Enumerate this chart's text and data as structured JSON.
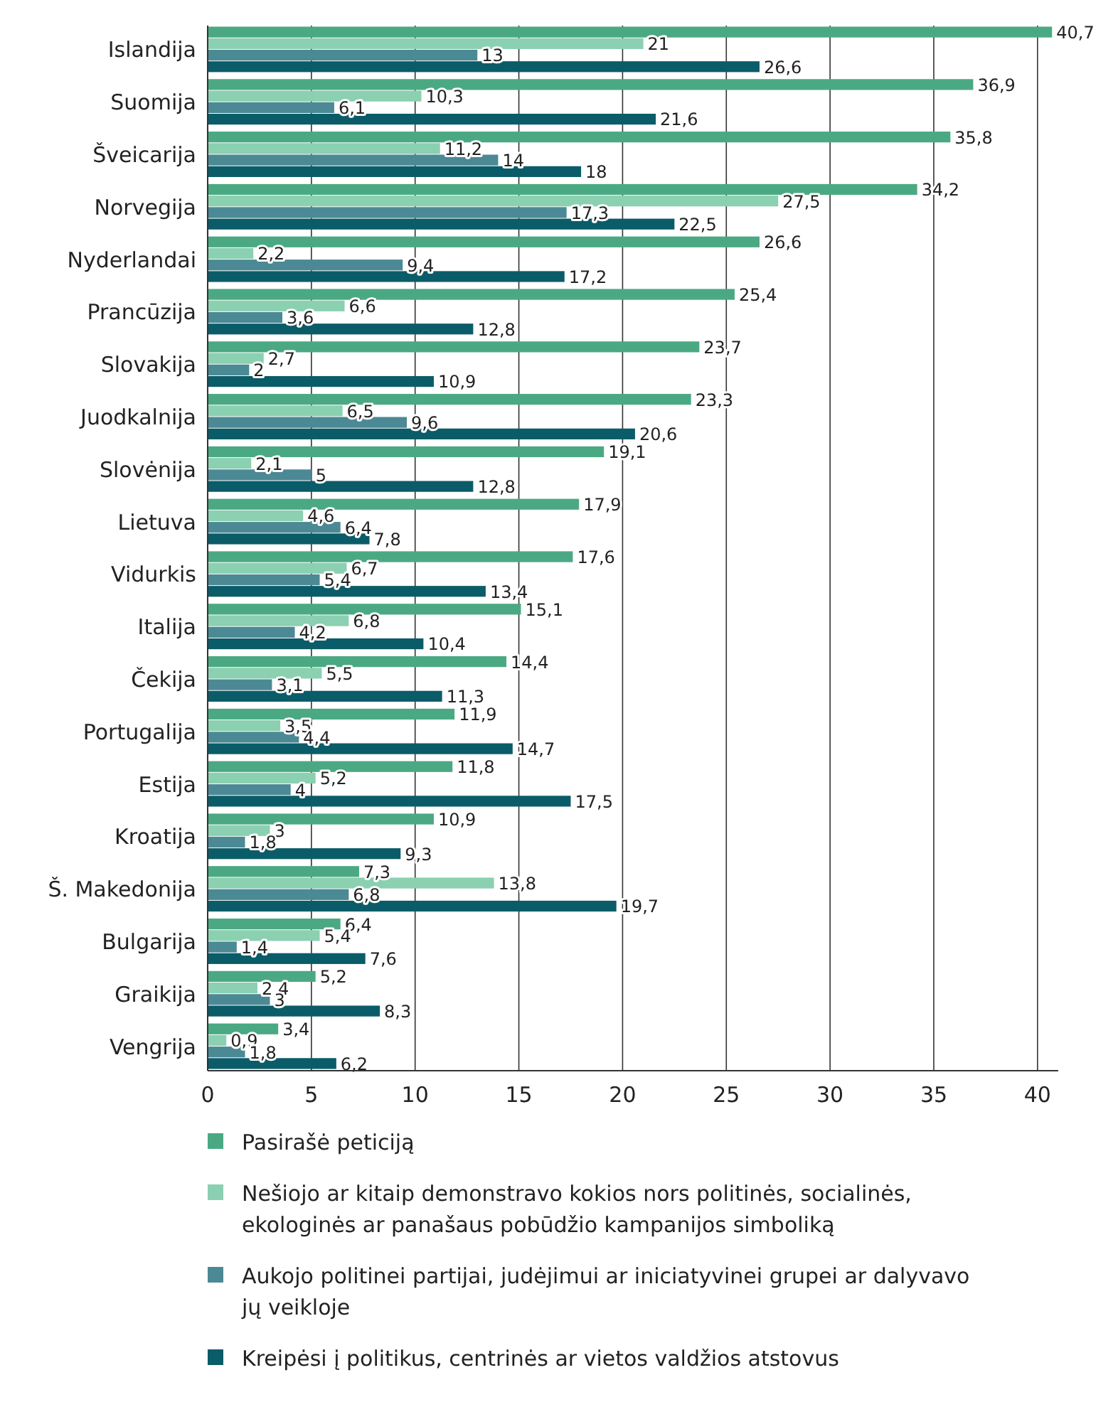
{
  "chart_data": {
    "type": "bar",
    "orientation": "horizontal",
    "categories": [
      "Islandija",
      "Suomija",
      "Šveicarija",
      "Norvegija",
      "Nyderlandai",
      "Prancūzija",
      "Slovakija",
      "Juodkalnija",
      "Slovėnija",
      "Lietuva",
      "Vidurkis",
      "Italija",
      "Čekija",
      "Portugalija",
      "Estija",
      "Kroatija",
      "Š. Makedonija",
      "Bulgarija",
      "Graikija",
      "Vengrija"
    ],
    "series": [
      {
        "name": "Pasirašė peticiją",
        "color": "#4aa983",
        "values": [
          40.7,
          36.9,
          35.8,
          34.2,
          26.6,
          25.4,
          23.7,
          23.3,
          19.1,
          17.9,
          17.6,
          15.1,
          14.4,
          11.9,
          11.8,
          10.9,
          7.3,
          6.4,
          5.2,
          3.4
        ],
        "value_labels": [
          "40,7",
          "36,9",
          "35,8",
          "34,2",
          "26,6",
          "25,4",
          "23,7",
          "23,3",
          "19,1",
          "17,9",
          "17,6",
          "15,1",
          "14,4",
          "11,9",
          "11,8",
          "10,9",
          "7,3",
          "6,4",
          "5,2",
          "3,4"
        ]
      },
      {
        "name": "Nešiojo ar kitaip demonstravo kokios nors politinės, socialinės, ekologinės ar panašaus pobūdžio kampanijos simboliką",
        "color": "#8ad0b1",
        "values": [
          21,
          10.3,
          11.2,
          27.5,
          2.2,
          6.6,
          2.7,
          6.5,
          2.1,
          4.6,
          6.7,
          6.8,
          5.5,
          3.5,
          5.2,
          3,
          13.8,
          5.4,
          2.4,
          0.9
        ],
        "value_labels": [
          "21",
          "10,3",
          "11,2",
          "27,5",
          "2,2",
          "6,6",
          "2,7",
          "6,5",
          "2,1",
          "4,6",
          "6,7",
          "6,8",
          "5,5",
          "3,5",
          "5,2",
          "3",
          "13,8",
          "5,4",
          "2,4",
          "0,9"
        ]
      },
      {
        "name": "Aukojo politinei partijai, judėjimui ar iniciatyvinei grupei ar dalyvavo jų veikloje",
        "color": "#4b8995",
        "values": [
          13,
          6.1,
          14,
          17.3,
          9.4,
          3.6,
          2,
          9.6,
          5,
          6.4,
          5.4,
          4.2,
          3.1,
          4.4,
          4,
          1.8,
          6.8,
          1.4,
          3,
          1.8
        ],
        "value_labels": [
          "13",
          "6,1",
          "14",
          "17,3",
          "9,4",
          "3,6",
          "2",
          "9,6",
          "5",
          "6,4",
          "5,4",
          "4,2",
          "3,1",
          "4,4",
          "4",
          "1,8",
          "6,8",
          "1,4",
          "3",
          "1,8"
        ]
      },
      {
        "name": "Kreipėsi į politikus, centrinės ar vietos valdžios atstovus",
        "color": "#0b5c69",
        "values": [
          26.6,
          21.6,
          18,
          22.5,
          17.2,
          12.8,
          10.9,
          20.6,
          12.8,
          7.8,
          13.4,
          10.4,
          11.3,
          14.7,
          17.5,
          9.3,
          19.7,
          7.6,
          8.3,
          6.2
        ],
        "value_labels": [
          "26,6",
          "21,6",
          "18",
          "22,5",
          "17,2",
          "12,8",
          "10,9",
          "20,6",
          "12,8",
          "7,8",
          "13,4",
          "10,4",
          "11,3",
          "14,7",
          "17,5",
          "9,3",
          "19,7",
          "7,6",
          "8,3",
          "6,2"
        ]
      }
    ],
    "xlim": [
      0,
      41
    ],
    "xticks": [
      0,
      5,
      10,
      15,
      20,
      25,
      30,
      35,
      40
    ],
    "grid": "x",
    "legend": "bottom"
  }
}
